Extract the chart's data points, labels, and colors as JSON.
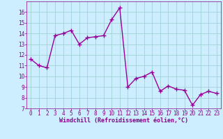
{
  "x": [
    0,
    1,
    2,
    3,
    4,
    5,
    6,
    7,
    8,
    9,
    10,
    11,
    12,
    13,
    14,
    15,
    16,
    17,
    18,
    19,
    20,
    21,
    22,
    23
  ],
  "y": [
    11.6,
    11.0,
    10.8,
    13.8,
    14.0,
    14.3,
    13.0,
    13.6,
    13.7,
    13.8,
    15.3,
    16.4,
    9.0,
    9.8,
    10.0,
    10.4,
    8.6,
    9.1,
    8.8,
    8.7,
    7.3,
    8.3,
    8.6,
    8.4
  ],
  "line_color": "#990099",
  "marker": "+",
  "markersize": 4,
  "linewidth": 1.0,
  "xlabel": "Windchill (Refroidissement éolien,°C)",
  "xlim": [
    -0.5,
    23.5
  ],
  "ylim": [
    7,
    17
  ],
  "yticks": [
    7,
    8,
    9,
    10,
    11,
    12,
    13,
    14,
    15,
    16
  ],
  "xticks": [
    0,
    1,
    2,
    3,
    4,
    5,
    6,
    7,
    8,
    9,
    10,
    11,
    12,
    13,
    14,
    15,
    16,
    17,
    18,
    19,
    20,
    21,
    22,
    23
  ],
  "bg_color": "#cceeff",
  "grid_color": "#99cccc",
  "tick_color": "#880088",
  "tick_label_size": 5.5,
  "xlabel_size": 6.0
}
